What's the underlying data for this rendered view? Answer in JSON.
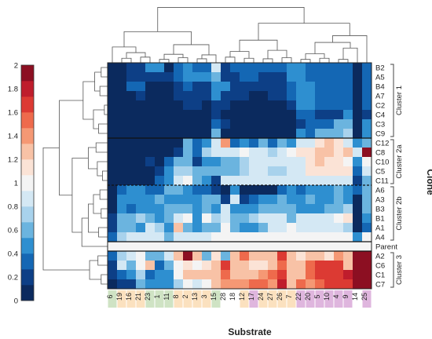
{
  "chart_data": {
    "type": "heatmap",
    "xlabel": "Substrate",
    "ylabel": "Clone",
    "color_scale": {
      "ticks": [
        "0",
        "0.2",
        "0.4",
        "0.6",
        "0.8",
        "1",
        "1.2",
        "1.4",
        "1.6",
        "1.8",
        "2"
      ],
      "range": [
        0,
        2
      ],
      "steps": [
        "#0b2a5e",
        "#0d3f86",
        "#1467b4",
        "#2e8fd0",
        "#6bb4df",
        "#a8d2ec",
        "#d4e8f4",
        "#f4f4f4",
        "#fbe3d6",
        "#f8c2a6",
        "#f59874",
        "#ee6a4c",
        "#dc3a33",
        "#bf1d2c",
        "#8c0f22"
      ]
    },
    "columns": [
      {
        "label": "6",
        "group": "green"
      },
      {
        "label": "19",
        "group": "orange"
      },
      {
        "label": "16",
        "group": "orange"
      },
      {
        "label": "21",
        "group": "orange"
      },
      {
        "label": "23",
        "group": "green"
      },
      {
        "label": "1",
        "group": "green"
      },
      {
        "label": "11",
        "group": "green"
      },
      {
        "label": "8",
        "group": "orange"
      },
      {
        "label": "2",
        "group": "orange"
      },
      {
        "label": "13",
        "group": "orange"
      },
      {
        "label": "3",
        "group": "orange"
      },
      {
        "label": "15",
        "group": "green"
      },
      {
        "label": "28",
        "group": "none"
      },
      {
        "label": "18",
        "group": "none"
      },
      {
        "label": "12",
        "group": "orange"
      },
      {
        "label": "17",
        "group": "purple"
      },
      {
        "label": "24",
        "group": "orange"
      },
      {
        "label": "27",
        "group": "orange"
      },
      {
        "label": "26",
        "group": "orange"
      },
      {
        "label": "7",
        "group": "orange"
      },
      {
        "label": "22",
        "group": "purple"
      },
      {
        "label": "20",
        "group": "purple"
      },
      {
        "label": "5",
        "group": "purple"
      },
      {
        "label": "10",
        "group": "purple"
      },
      {
        "label": "4",
        "group": "purple"
      },
      {
        "label": "9",
        "group": "purple"
      },
      {
        "label": "14",
        "group": "none"
      },
      {
        "label": "25",
        "group": "purple"
      }
    ],
    "column_group_colors": {
      "green": "#cfe3c4",
      "orange": "#fbe1bf",
      "purple": "#dfb6de",
      "none": "#ffffff"
    },
    "rows": [
      "B2",
      "A5",
      "B4",
      "A7",
      "C2",
      "C4",
      "C3",
      "C9",
      "C12",
      "C8",
      "C10",
      "C5",
      "C11",
      "A6",
      "A3",
      "B3",
      "B1",
      "A1",
      "A4",
      "Parent",
      "A2",
      "C6",
      "C1",
      "C7"
    ],
    "clusters": [
      {
        "name": "Cluster 1",
        "rows": [
          "B2",
          "A5",
          "B4",
          "A7",
          "C2",
          "C4",
          "C3",
          "C9"
        ]
      },
      {
        "name": "Cluster 2a",
        "rows": [
          "C12",
          "C8",
          "C10",
          "C5",
          "C11"
        ]
      },
      {
        "name": "Cluster 2b",
        "rows": [
          "A6",
          "A3",
          "B3",
          "B1",
          "A1",
          "A4"
        ]
      },
      {
        "name": "Cluster 3",
        "rows": [
          "A2",
          "C6",
          "C1",
          "C7"
        ]
      }
    ],
    "values": [
      [
        0.05,
        0.05,
        0.2,
        0.2,
        0.45,
        0.5,
        0.1,
        0.35,
        0.4,
        0.3,
        0.35,
        0.9,
        0.15,
        0.3,
        0.3,
        0.3,
        0.3,
        0.3,
        0.3,
        0.5,
        0.5,
        0.3,
        0.3,
        0.3,
        0.3,
        0.3,
        0.1,
        0.3
      ],
      [
        0.05,
        0.05,
        0.25,
        0.25,
        0.15,
        0.25,
        0.15,
        0.3,
        0.45,
        0.5,
        0.45,
        0.65,
        0.2,
        0.25,
        0.3,
        0.3,
        0.25,
        0.25,
        0.25,
        0.4,
        0.5,
        0.3,
        0.3,
        0.3,
        0.3,
        0.3,
        0.1,
        0.3
      ],
      [
        0.05,
        0.05,
        0.3,
        0.3,
        0.05,
        0.05,
        0.05,
        0.2,
        0.3,
        0.25,
        0.2,
        0.4,
        0.5,
        0.2,
        0.15,
        0.15,
        0.15,
        0.2,
        0.2,
        0.35,
        0.5,
        0.4,
        0.3,
        0.3,
        0.3,
        0.3,
        0.1,
        0.3
      ],
      [
        0.05,
        0.05,
        0.05,
        0.2,
        0.05,
        0.05,
        0.05,
        0.15,
        0.2,
        0.2,
        0.2,
        0.4,
        0.2,
        0.15,
        0.15,
        0.1,
        0.05,
        0.15,
        0.15,
        0.35,
        0.5,
        0.5,
        0.3,
        0.3,
        0.3,
        0.3,
        0.1,
        0.3
      ],
      [
        0.05,
        0.05,
        0.05,
        0.05,
        0.05,
        0.05,
        0.05,
        0.05,
        0.15,
        0.15,
        0.1,
        0.25,
        0.2,
        0.05,
        0.1,
        0.05,
        0.05,
        0.1,
        0.1,
        0.25,
        0.4,
        0.45,
        0.3,
        0.3,
        0.3,
        0.3,
        0.1,
        0.3
      ],
      [
        0.05,
        0.05,
        0.05,
        0.05,
        0.05,
        0.05,
        0.05,
        0.05,
        0.05,
        0.05,
        0.05,
        0.25,
        0.1,
        0.05,
        0.05,
        0.05,
        0.05,
        0.05,
        0.05,
        0.05,
        0.3,
        0.35,
        0.2,
        0.2,
        0.2,
        0.45,
        0.1,
        0.2
      ],
      [
        0.05,
        0.05,
        0.05,
        0.05,
        0.05,
        0.05,
        0.05,
        0.05,
        0.05,
        0.05,
        0.05,
        0.3,
        0.15,
        0.05,
        0.05,
        0.05,
        0.05,
        0.05,
        0.05,
        0.05,
        0.2,
        0.35,
        0.35,
        0.35,
        0.55,
        0.55,
        0.1,
        0.5
      ],
      [
        0.05,
        0.05,
        0.05,
        0.05,
        0.05,
        0.05,
        0.05,
        0.05,
        0.05,
        0.05,
        0.05,
        0.6,
        0.05,
        0.05,
        0.05,
        0.05,
        0.05,
        0.05,
        0.05,
        0.05,
        0.4,
        0.35,
        0.6,
        0.65,
        0.65,
        0.7,
        0.1,
        0.5
      ],
      [
        0.05,
        0.05,
        0.05,
        0.05,
        0.05,
        0.05,
        0.05,
        0.05,
        0.6,
        0.35,
        0.5,
        0.9,
        1.35,
        0.35,
        0.5,
        0.35,
        0.6,
        0.35,
        0.6,
        0.5,
        0.9,
        0.9,
        1.15,
        1.2,
        1.15,
        0.9,
        0.4,
        0.6
      ],
      [
        0.05,
        0.05,
        0.05,
        0.05,
        0.05,
        0.1,
        0.1,
        0.2,
        0.55,
        0.3,
        0.7,
        0.85,
        0.9,
        0.9,
        1.0,
        0.9,
        0.9,
        0.7,
        0.9,
        1.0,
        1.15,
        1.15,
        1.2,
        1.2,
        1.15,
        1.2,
        0.9,
        1.9
      ],
      [
        0.05,
        0.05,
        0.05,
        0.1,
        0.25,
        0.1,
        0.3,
        0.55,
        0.6,
        0.25,
        0.5,
        0.45,
        0.65,
        0.6,
        0.7,
        0.8,
        0.9,
        0.9,
        0.85,
        0.8,
        0.8,
        1.1,
        1.2,
        1.1,
        1.1,
        0.95,
        0.5,
        0.95
      ],
      [
        0.05,
        0.05,
        0.05,
        0.05,
        0.05,
        0.15,
        0.45,
        0.75,
        0.75,
        0.55,
        0.6,
        0.6,
        0.6,
        0.65,
        0.7,
        0.8,
        0.9,
        0.75,
        0.75,
        0.8,
        0.9,
        1.1,
        1.1,
        1.1,
        1.1,
        1.1,
        0.35,
        0.9
      ],
      [
        0.05,
        0.05,
        0.05,
        0.05,
        0.05,
        0.3,
        0.4,
        0.8,
        0.95,
        0.65,
        0.45,
        0.2,
        0.85,
        0.8,
        0.9,
        0.9,
        0.9,
        0.9,
        0.9,
        0.9,
        0.9,
        0.9,
        0.9,
        0.9,
        0.9,
        0.9,
        0.25,
        0.55
      ],
      [
        0.05,
        0.3,
        0.5,
        0.5,
        0.3,
        0.3,
        0.65,
        0.55,
        0.5,
        0.3,
        0.3,
        0.25,
        0.05,
        0.5,
        0.05,
        0.05,
        0.1,
        0.05,
        0.3,
        0.5,
        0.3,
        0.5,
        0.5,
        0.5,
        0.6,
        0.5,
        0.3,
        0.6
      ],
      [
        0.05,
        0.45,
        0.5,
        0.5,
        0.45,
        0.6,
        0.45,
        0.4,
        0.5,
        0.5,
        0.55,
        0.65,
        0.2,
        0.8,
        0.25,
        0.3,
        0.5,
        0.5,
        0.6,
        0.5,
        0.45,
        0.65,
        0.5,
        0.5,
        0.6,
        0.5,
        0.1,
        0.65
      ],
      [
        0.05,
        0.5,
        0.3,
        0.45,
        0.45,
        0.5,
        0.6,
        0.55,
        0.6,
        0.45,
        0.6,
        0.5,
        0.85,
        0.5,
        0.45,
        0.45,
        0.55,
        0.55,
        0.6,
        0.6,
        0.45,
        0.45,
        0.45,
        0.6,
        0.6,
        0.7,
        0.1,
        0.65
      ],
      [
        0.2,
        0.6,
        0.6,
        0.75,
        0.6,
        0.4,
        0.55,
        0.85,
        0.95,
        0.5,
        0.95,
        0.75,
        0.85,
        0.6,
        0.55,
        0.75,
        0.8,
        0.8,
        0.85,
        0.6,
        0.9,
        0.8,
        0.85,
        0.9,
        0.95,
        1.15,
        0.1,
        0.4
      ],
      [
        0.2,
        0.65,
        0.65,
        0.5,
        0.9,
        0.7,
        0.45,
        1.2,
        0.6,
        0.4,
        0.55,
        0.55,
        0.95,
        0.6,
        0.4,
        0.5,
        0.6,
        0.9,
        0.85,
        0.95,
        0.8,
        0.8,
        0.9,
        0.85,
        0.85,
        0.7,
        0.1,
        0.35
      ],
      [
        0.3,
        0.75,
        0.8,
        0.9,
        0.85,
        0.85,
        0.6,
        0.8,
        0.85,
        0.85,
        0.9,
        0.95,
        0.95,
        0.95,
        0.95,
        0.95,
        0.95,
        0.95,
        0.95,
        0.95,
        0.95,
        0.95,
        0.95,
        0.95,
        0.95,
        0.95,
        0.45,
        0.95
      ],
      [
        1.0,
        1.0,
        1.0,
        1.0,
        1.0,
        1.0,
        1.0,
        1.0,
        1.0,
        1.0,
        1.0,
        1.0,
        1.0,
        1.0,
        1.0,
        1.0,
        1.0,
        1.0,
        1.0,
        1.0,
        1.0,
        1.0,
        1.0,
        1.0,
        1.0,
        1.0,
        1.0,
        1.0
      ],
      [
        0.3,
        0.75,
        0.85,
        1.05,
        0.6,
        0.65,
        0.9,
        1.3,
        1.9,
        1.2,
        0.55,
        1.1,
        0.6,
        1.3,
        1.5,
        1.2,
        1.2,
        1.25,
        1.6,
        1.2,
        1.1,
        1.2,
        1.3,
        1.1,
        1.4,
        1.3,
        1.95,
        1.95
      ],
      [
        0.15,
        0.8,
        0.55,
        0.95,
        1.2,
        0.3,
        0.6,
        1.0,
        1.1,
        1.0,
        1.15,
        1.2,
        1.7,
        1.25,
        1.3,
        1.15,
        1.15,
        1.25,
        1.55,
        1.25,
        1.3,
        1.55,
        1.6,
        1.6,
        1.6,
        1.3,
        1.95,
        1.95
      ],
      [
        0.15,
        0.3,
        0.4,
        0.75,
        0.35,
        0.45,
        0.5,
        1.05,
        1.2,
        1.3,
        1.25,
        1.25,
        1.55,
        1.3,
        1.3,
        1.25,
        1.35,
        1.5,
        1.6,
        1.25,
        1.3,
        1.55,
        1.6,
        1.6,
        1.65,
        1.8,
        1.95,
        1.95
      ],
      [
        0.1,
        0.2,
        0.15,
        0.6,
        0.5,
        0.5,
        0.5,
        0.75,
        1.0,
        0.85,
        0.95,
        1.2,
        1.45,
        1.4,
        1.45,
        1.55,
        1.5,
        1.45,
        1.8,
        1.3,
        1.5,
        1.45,
        1.5,
        1.6,
        1.65,
        1.65,
        1.95,
        1.9
      ]
    ],
    "separators": {
      "solid_after": [
        "C9",
        "A4",
        "Parent"
      ],
      "dashed_after": [
        "C11"
      ]
    }
  }
}
